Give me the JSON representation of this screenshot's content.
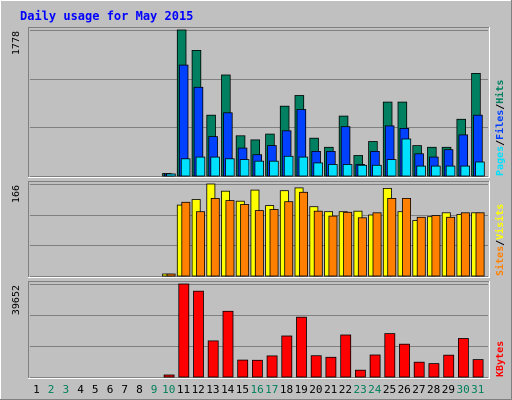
{
  "chart_data": {
    "type": "bar",
    "title": "Daily usage for May 2015",
    "days": [
      "1",
      "2",
      "3",
      "4",
      "5",
      "6",
      "7",
      "8",
      "9",
      "10",
      "11",
      "12",
      "13",
      "14",
      "15",
      "16",
      "17",
      "18",
      "19",
      "20",
      "21",
      "22",
      "23",
      "24",
      "25",
      "26",
      "27",
      "28",
      "29",
      "30",
      "31"
    ],
    "weekend_days": [
      "2",
      "3",
      "9",
      "10",
      "16",
      "17",
      "23",
      "24",
      "30",
      "31"
    ],
    "panels": [
      {
        "name": "hits-files-pages",
        "max_label": "1778",
        "ymax": 1778,
        "legend": [
          {
            "text": "Pages",
            "color": "#00e0ff"
          },
          {
            "text": "Files",
            "color": "#0040ff"
          },
          {
            "text": "Hits",
            "color": "#008060"
          }
        ],
        "series": [
          {
            "name": "Hits",
            "color": "#008060",
            "values": [
              0,
              0,
              0,
              0,
              0,
              0,
              0,
              0,
              0,
              30,
              1778,
              1530,
              740,
              1230,
              490,
              440,
              510,
              850,
              980,
              460,
              350,
              730,
              250,
              420,
              900,
              900,
              370,
              350,
              350,
              690,
              1250
            ]
          },
          {
            "name": "Files",
            "color": "#0040ff",
            "values": [
              0,
              0,
              0,
              0,
              0,
              0,
              0,
              0,
              0,
              20,
              1350,
              1080,
              480,
              770,
              340,
              260,
              370,
              550,
              810,
              300,
              300,
              600,
              140,
              300,
              610,
              580,
              270,
              230,
              320,
              500,
              740
            ]
          },
          {
            "name": "Pages",
            "color": "#00e0ff",
            "values": [
              0,
              0,
              0,
              0,
              0,
              0,
              0,
              0,
              0,
              10,
              210,
              230,
              230,
              210,
              200,
              180,
              180,
              240,
              230,
              160,
              140,
              140,
              130,
              130,
              200,
              450,
              120,
              120,
              120,
              120,
              170
            ]
          }
        ]
      },
      {
        "name": "visits-sites",
        "max_label": "166",
        "ymax": 166,
        "legend": [
          {
            "text": "Sites",
            "color": "#ff8000"
          },
          {
            "text": "Visits",
            "color": "#ffff00"
          }
        ],
        "series": [
          {
            "name": "Visits",
            "color": "#ffff00",
            "values": [
              0,
              0,
              0,
              0,
              0,
              0,
              0,
              0,
              0,
              3,
              128,
              138,
              166,
              153,
              135,
              155,
              127,
              154,
              159,
              125,
              116,
              116,
              117,
              110,
              158,
              116,
              100,
              107,
              114,
              111,
              114
            ]
          },
          {
            "name": "Sites",
            "color": "#ff8000",
            "values": [
              0,
              0,
              0,
              0,
              0,
              0,
              0,
              0,
              0,
              3,
              133,
              116,
              140,
              136,
              129,
              118,
              120,
              134,
              151,
              117,
              108,
              115,
              105,
              114,
              140,
              140,
              106,
              109,
              106,
              114,
              114
            ]
          }
        ]
      },
      {
        "name": "kbytes",
        "max_label": "39652",
        "ymax": 39652,
        "legend": [
          {
            "text": "KBytes",
            "color": "#ff0000"
          }
        ],
        "series": [
          {
            "name": "KBytes",
            "color": "#ff0000",
            "values": [
              0,
              0,
              0,
              0,
              0,
              0,
              0,
              0,
              0,
              300,
              39652,
              36600,
              15400,
              28000,
              7200,
              7100,
              9000,
              17500,
              25500,
              9100,
              8400,
              17900,
              2900,
              9400,
              18500,
              14000,
              6300,
              5700,
              9300,
              16400,
              7400
            ]
          }
        ]
      }
    ]
  }
}
